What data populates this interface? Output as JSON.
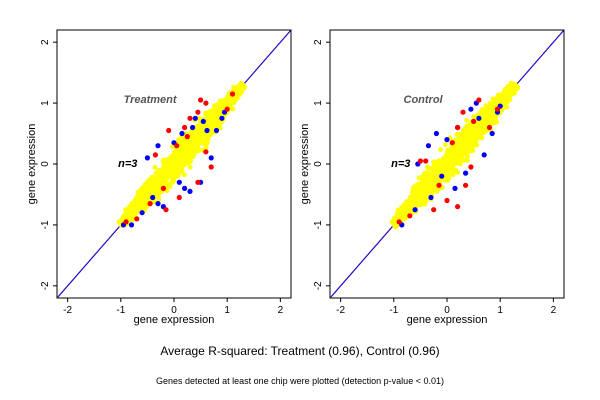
{
  "colors": {
    "frame": "#000000",
    "panel_title": "#555555",
    "series_yellow": "#ffff00",
    "series_red": "#ff0000",
    "series_blue": "#0000ff",
    "diagonal_lines": [
      "#ff0000",
      "#ffa500",
      "#0000ff"
    ]
  },
  "captions": {
    "main": "Average R-squared: Treatment (0.96), Control (0.96)",
    "sub": "Genes detected at least one chip were plotted (detection p-value < 0.01)"
  },
  "chart_data": [
    {
      "type": "scatter",
      "title": "Treatment",
      "n_label": "n=3",
      "xlabel": "gene expression",
      "ylabel": "gene expression",
      "xlim": [
        -2.2,
        2.2
      ],
      "ylim": [
        -2.2,
        2.2
      ],
      "xticks": [
        -2,
        -1,
        0,
        1,
        2
      ],
      "yticks": [
        -2,
        -1,
        0,
        1,
        2
      ],
      "xtick_labels": [
        "-2",
        "-1",
        "0",
        "1",
        "2"
      ],
      "ytick_labels": [
        "-2",
        "-1",
        "0",
        "1",
        "2"
      ],
      "reference_line": "y = x",
      "cloud": {
        "x_range": [
          -1.0,
          1.3
        ],
        "spread": 0.22
      },
      "series": [
        {
          "color": "blue",
          "points": [
            [
              0.55,
              0.7
            ],
            [
              0.62,
              0.55
            ],
            [
              0.8,
              0.55
            ],
            [
              0.9,
              0.75
            ],
            [
              0.95,
              0.85
            ],
            [
              0.4,
              0.75
            ],
            [
              0.5,
              -0.3
            ],
            [
              0.3,
              -0.45
            ],
            [
              0.2,
              -0.4
            ],
            [
              -0.2,
              -0.7
            ],
            [
              -0.3,
              -0.65
            ],
            [
              -0.4,
              -0.55
            ],
            [
              -0.6,
              -0.8
            ],
            [
              -0.8,
              -1.0
            ],
            [
              -0.95,
              -1.0
            ],
            [
              -0.5,
              0.1
            ],
            [
              -0.3,
              0.3
            ],
            [
              0.0,
              0.35
            ],
            [
              0.15,
              0.5
            ],
            [
              0.35,
              0.6
            ],
            [
              0.7,
              0.1
            ],
            [
              0.1,
              -0.3
            ]
          ]
        },
        {
          "color": "red",
          "points": [
            [
              0.5,
              1.05
            ],
            [
              0.6,
              1.0
            ],
            [
              0.45,
              0.85
            ],
            [
              0.25,
              0.45
            ],
            [
              0.2,
              0.6
            ],
            [
              -0.1,
              0.55
            ],
            [
              0.05,
              0.3
            ],
            [
              -0.35,
              0.15
            ],
            [
              0.6,
              0.2
            ],
            [
              0.7,
              -0.05
            ],
            [
              0.45,
              -0.3
            ],
            [
              0.1,
              -0.55
            ],
            [
              -0.15,
              -0.75
            ],
            [
              -0.45,
              -0.65
            ],
            [
              -0.7,
              -0.9
            ],
            [
              -0.9,
              -0.95
            ],
            [
              1.0,
              0.9
            ],
            [
              1.1,
              1.15
            ],
            [
              0.3,
              0.75
            ],
            [
              -0.2,
              -0.4
            ]
          ]
        }
      ]
    },
    {
      "type": "scatter",
      "title": "Control",
      "n_label": "n=3",
      "xlabel": "gene expression",
      "ylabel": "gene expression",
      "xlim": [
        -2.2,
        2.2
      ],
      "ylim": [
        -2.2,
        2.2
      ],
      "xticks": [
        -2,
        -1,
        0,
        1,
        2
      ],
      "yticks": [
        -2,
        -1,
        0,
        1,
        2
      ],
      "xtick_labels": [
        "-2",
        "-1",
        "0",
        "1",
        "2"
      ],
      "ytick_labels": [
        "-2",
        "-1",
        "0",
        "1",
        "2"
      ],
      "reference_line": "y = x",
      "cloud": {
        "x_range": [
          -1.0,
          1.3
        ],
        "spread": 0.22
      },
      "series": [
        {
          "color": "blue",
          "points": [
            [
              0.55,
              1.0
            ],
            [
              0.45,
              0.9
            ],
            [
              0.95,
              0.85
            ],
            [
              1.0,
              0.95
            ],
            [
              0.85,
              0.5
            ],
            [
              -0.2,
              0.5
            ],
            [
              -0.35,
              0.3
            ],
            [
              0.0,
              0.4
            ],
            [
              -0.55,
              0.0
            ],
            [
              0.35,
              -0.15
            ],
            [
              0.15,
              -0.4
            ],
            [
              -0.3,
              -0.55
            ],
            [
              -0.6,
              -0.75
            ],
            [
              -0.85,
              -1.0
            ],
            [
              0.7,
              0.15
            ],
            [
              0.2,
              0.6
            ],
            [
              0.6,
              0.75
            ],
            [
              -0.1,
              -0.2
            ]
          ]
        },
        {
          "color": "red",
          "points": [
            [
              0.5,
              0.7
            ],
            [
              0.2,
              0.6
            ],
            [
              0.6,
              1.05
            ],
            [
              0.3,
              0.85
            ],
            [
              0.1,
              0.35
            ],
            [
              -0.4,
              0.05
            ],
            [
              -0.5,
              0.05
            ],
            [
              0.45,
              -0.05
            ],
            [
              0.0,
              -0.6
            ],
            [
              0.2,
              -0.7
            ],
            [
              -0.25,
              -0.75
            ],
            [
              -0.7,
              -0.85
            ],
            [
              -0.9,
              -0.95
            ],
            [
              0.8,
              0.6
            ],
            [
              0.95,
              0.9
            ],
            [
              -0.15,
              -0.35
            ],
            [
              0.35,
              -0.35
            ]
          ]
        }
      ]
    }
  ]
}
